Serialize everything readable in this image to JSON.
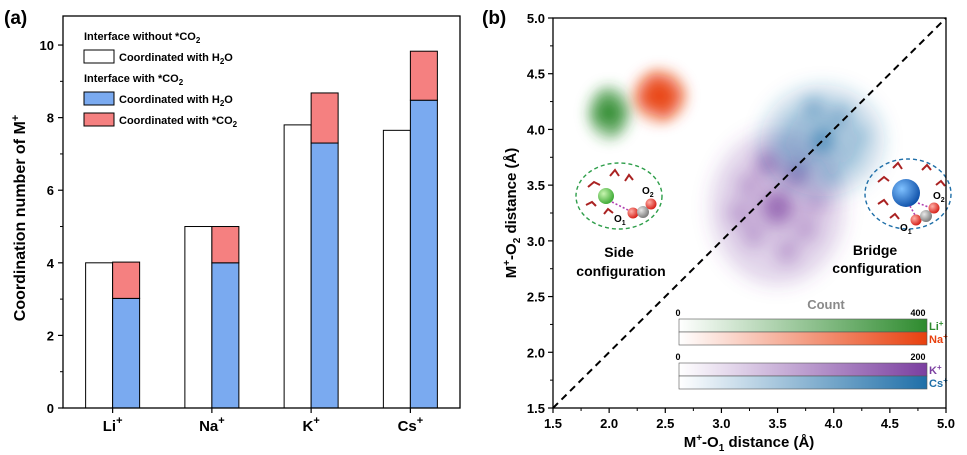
{
  "panel_a": {
    "label": "(a)",
    "ylabel_main": "Coordination number of M",
    "ylabel_sup": "+",
    "legend": {
      "header1_main": "Interface without *CO",
      "header1_sub": "2",
      "header2_main": "Interface with *CO",
      "header2_sub": "2",
      "entry_white_main": "Coordinated with H",
      "entry_white_sub": "2",
      "entry_white_tail": "O",
      "entry_blue_main": "Coordinated with H",
      "entry_blue_sub": "2",
      "entry_blue_tail": "O",
      "entry_red_main": "Coordinated with *CO",
      "entry_red_sub": "2"
    },
    "category_labels": [
      {
        "main": "Li",
        "sup": "+"
      },
      {
        "main": "Na",
        "sup": "+"
      },
      {
        "main": "K",
        "sup": "+"
      },
      {
        "main": "Cs",
        "sup": "+"
      }
    ],
    "y_ticks": [
      "0",
      "2",
      "4",
      "6",
      "8",
      "10"
    ]
  },
  "panel_b": {
    "label": "(b)",
    "xlabel": {
      "p1": "M",
      "sup": "+",
      "p2": "-O",
      "sub": "1",
      "p3": " distance (Å)"
    },
    "ylabel": {
      "p1": "M",
      "sup": "+",
      "p2": "-O",
      "sub": "2",
      "p3": " distance (Å)"
    },
    "x_ticks": [
      "1.5",
      "2.0",
      "2.5",
      "3.0",
      "3.5",
      "4.0",
      "4.5",
      "5.0"
    ],
    "y_ticks": [
      "1.5",
      "2.0",
      "2.5",
      "3.0",
      "3.5",
      "4.0",
      "4.5",
      "5.0"
    ],
    "annotation_side": [
      "Side",
      "configuration"
    ],
    "annotation_bridge": [
      "Bridge",
      "configuration"
    ],
    "count_title": "Count",
    "colorbar1": {
      "min": "0",
      "max": "400",
      "labels": [
        "Li",
        "Na"
      ],
      "sup": "+",
      "colors": [
        "#2e8b2e",
        "#e8400e"
      ]
    },
    "colorbar2": {
      "min": "0",
      "max": "200",
      "labels": [
        "K",
        "Cs"
      ],
      "sup": "+",
      "colors": [
        "#7b3fa0",
        "#1f6fa8"
      ]
    },
    "inset_labels": {
      "o2": "O",
      "o2_sub": "2",
      "o1": "O",
      "o1_sub": "1"
    }
  },
  "chart_data": [
    {
      "type": "bar",
      "title": "",
      "ylabel": "Coordination number of M+",
      "ylim": [
        0,
        10.8
      ],
      "categories": [
        "Li+",
        "Na+",
        "K+",
        "Cs+"
      ],
      "series": [
        {
          "name": "Interface without *CO2 - Coordinated with H2O",
          "values": [
            4.0,
            5.0,
            7.8,
            7.65
          ],
          "color": "#ffffff"
        },
        {
          "name": "Interface with *CO2 - Coordinated with H2O",
          "values": [
            3.02,
            4.0,
            7.3,
            8.48
          ],
          "color": "#7aaaf0",
          "stack": "with"
        },
        {
          "name": "Interface with *CO2 - Coordinated with *CO2",
          "values": [
            1.0,
            1.0,
            1.38,
            1.35
          ],
          "color": "#f58080",
          "stack": "with"
        }
      ]
    },
    {
      "type": "heatmap",
      "xlabel": "M+-O1 distance (Å)",
      "ylabel": "M+-O2 distance (Å)",
      "xlim": [
        1.5,
        5.0
      ],
      "ylim": [
        1.5,
        5.0
      ],
      "diagonal": "dashed",
      "series": [
        {
          "name": "Li+",
          "color": "#2e8b2e",
          "count_max": 400,
          "center": [
            2.0,
            4.15
          ],
          "spread": [
            0.2,
            0.25
          ]
        },
        {
          "name": "Na+",
          "color": "#e8400e",
          "count_max": 400,
          "center": [
            2.45,
            4.3
          ],
          "spread": [
            0.25,
            0.25
          ]
        },
        {
          "name": "K+",
          "color": "#7b3fa0",
          "count_max": 200,
          "center": [
            3.5,
            3.3
          ],
          "spread": [
            0.6,
            0.7
          ]
        },
        {
          "name": "Cs+",
          "color": "#1f6fa8",
          "count_max": 200,
          "center": [
            3.9,
            3.9
          ],
          "spread": [
            0.55,
            0.5
          ]
        }
      ]
    }
  ]
}
